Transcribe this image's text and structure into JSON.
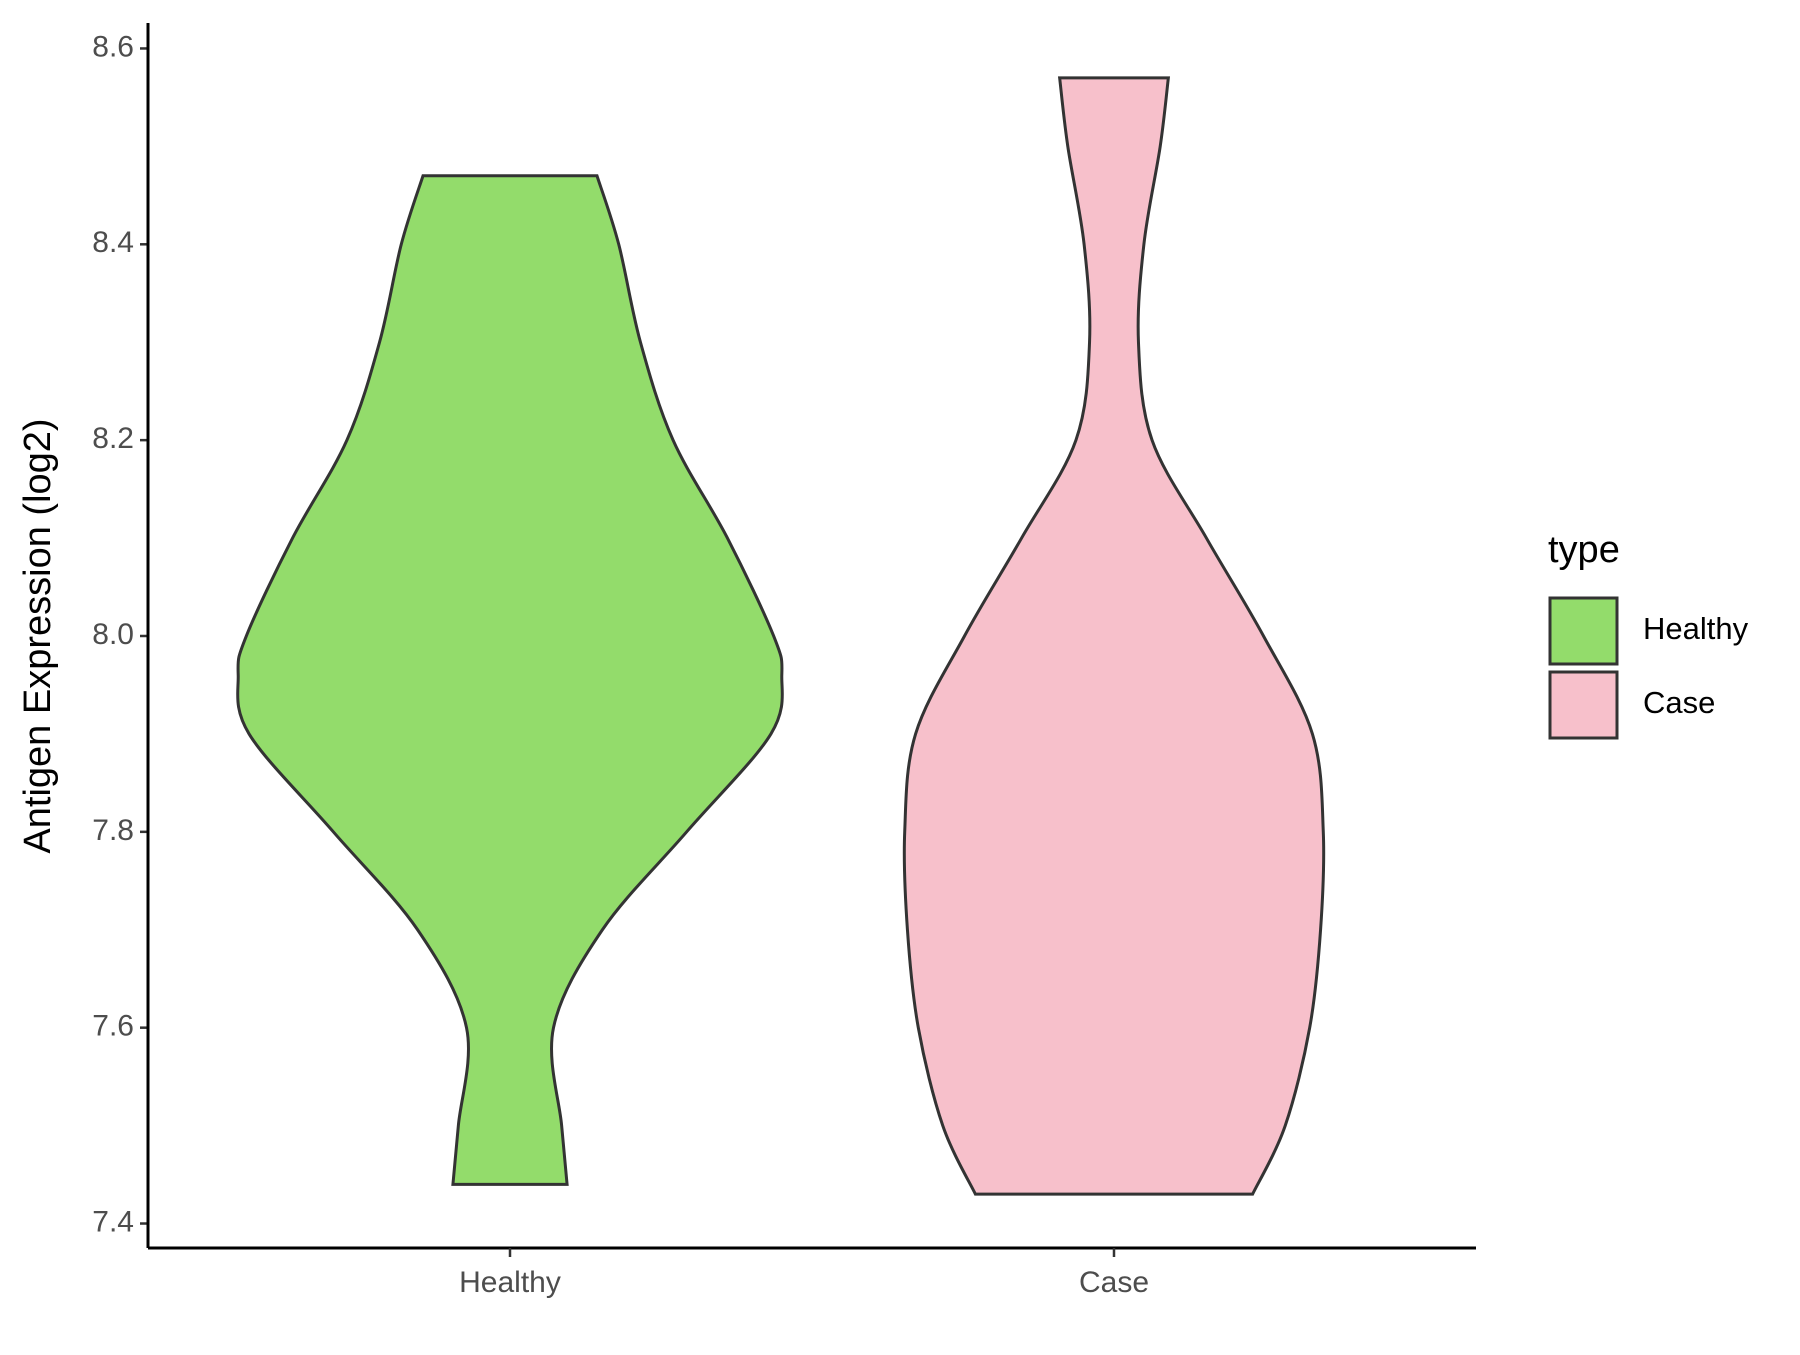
{
  "chart_data": {
    "type": "violin",
    "y_label": "Antigen Expression (log2)",
    "categories": [
      "Healthy",
      "Case"
    ],
    "legend_title": "type",
    "legend_position": "right",
    "ylim": [
      7.375,
      8.626
    ],
    "yticks": [
      {
        "value": 7.4,
        "label": "7.4"
      },
      {
        "value": 7.6,
        "label": "7.6"
      },
      {
        "value": 7.8,
        "label": "7.8"
      },
      {
        "value": 8.0,
        "label": "8.0"
      },
      {
        "value": 8.2,
        "label": "8.2"
      },
      {
        "value": 8.4,
        "label": "8.4"
      },
      {
        "value": 8.6,
        "label": "8.6"
      }
    ],
    "series": [
      {
        "name": "Healthy",
        "color": "#93dc6b",
        "y": [
          8.47,
          8.4,
          8.3,
          8.2,
          8.1,
          8.0,
          7.96,
          7.9,
          7.8,
          7.7,
          7.6,
          7.5,
          7.44
        ],
        "density": [
          0.32,
          0.4,
          0.48,
          0.6,
          0.8,
          0.97,
          1.0,
          0.96,
          0.65,
          0.34,
          0.16,
          0.19,
          0.21
        ]
      },
      {
        "name": "Case",
        "color": "#f7c0cb",
        "y": [
          8.57,
          8.5,
          8.4,
          8.3,
          8.2,
          8.1,
          8.0,
          7.9,
          7.8,
          7.7,
          7.6,
          7.5,
          7.43
        ],
        "density": [
          0.2,
          0.17,
          0.11,
          0.09,
          0.14,
          0.34,
          0.55,
          0.73,
          0.77,
          0.76,
          0.72,
          0.63,
          0.51
        ]
      }
    ]
  }
}
